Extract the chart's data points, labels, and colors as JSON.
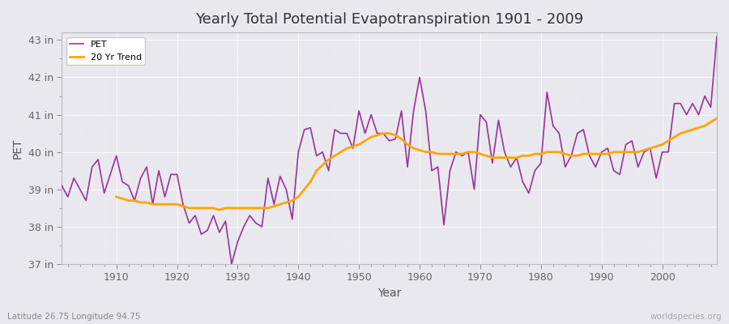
{
  "title": "Yearly Total Potential Evapotranspiration 1901 - 2009",
  "xlabel": "Year",
  "ylabel": "PET",
  "lat_lon_label": "Latitude 26.75 Longitude 94.75",
  "watermark": "worldspecies.org",
  "pet_color": "#993399",
  "trend_color": "#FFA500",
  "background_color": "#e8e8ee",
  "ylim": [
    37,
    43.2
  ],
  "yticks": [
    37,
    38,
    39,
    40,
    41,
    42,
    43
  ],
  "ytick_labels": [
    "37 in",
    "38 in",
    "39 in",
    "40 in",
    "41 in",
    "42 in",
    "43 in"
  ],
  "years": [
    1901,
    1902,
    1903,
    1904,
    1905,
    1906,
    1907,
    1908,
    1909,
    1910,
    1911,
    1912,
    1913,
    1914,
    1915,
    1916,
    1917,
    1918,
    1919,
    1920,
    1921,
    1922,
    1923,
    1924,
    1925,
    1926,
    1927,
    1928,
    1929,
    1930,
    1931,
    1932,
    1933,
    1934,
    1935,
    1936,
    1937,
    1938,
    1939,
    1940,
    1941,
    1942,
    1943,
    1944,
    1945,
    1946,
    1947,
    1948,
    1949,
    1950,
    1951,
    1952,
    1953,
    1954,
    1955,
    1956,
    1957,
    1958,
    1959,
    1960,
    1961,
    1962,
    1963,
    1964,
    1965,
    1966,
    1967,
    1968,
    1969,
    1970,
    1971,
    1972,
    1973,
    1974,
    1975,
    1976,
    1977,
    1978,
    1979,
    1980,
    1981,
    1982,
    1983,
    1984,
    1985,
    1986,
    1987,
    1988,
    1989,
    1990,
    1991,
    1992,
    1993,
    1994,
    1995,
    1996,
    1997,
    1998,
    1999,
    2000,
    2001,
    2002,
    2003,
    2004,
    2005,
    2006,
    2007,
    2008,
    2009
  ],
  "pet_values": [
    39.1,
    38.8,
    39.3,
    39.0,
    38.7,
    39.6,
    39.8,
    38.9,
    39.4,
    39.9,
    39.2,
    39.1,
    38.7,
    39.3,
    39.6,
    38.6,
    39.5,
    38.8,
    39.4,
    39.4,
    38.6,
    38.1,
    38.3,
    37.8,
    37.9,
    38.3,
    37.85,
    38.15,
    37.0,
    37.6,
    38.0,
    38.3,
    38.1,
    38.0,
    39.3,
    38.6,
    39.35,
    39.0,
    38.2,
    40.0,
    40.6,
    40.65,
    39.9,
    40.0,
    39.5,
    40.6,
    40.5,
    40.5,
    40.1,
    41.1,
    40.5,
    41.0,
    40.5,
    40.5,
    40.3,
    40.35,
    41.1,
    39.6,
    41.1,
    42.0,
    41.1,
    39.5,
    39.6,
    38.05,
    39.5,
    40.0,
    39.9,
    40.0,
    39.0,
    41.0,
    40.8,
    39.7,
    40.85,
    40.0,
    39.6,
    39.85,
    39.2,
    38.9,
    39.5,
    39.7,
    41.6,
    40.7,
    40.5,
    39.6,
    39.9,
    40.5,
    40.6,
    39.9,
    39.6,
    40.0,
    40.1,
    39.5,
    39.4,
    40.2,
    40.3,
    39.6,
    40.0,
    40.1,
    39.3,
    40.0,
    40.0,
    41.3,
    41.3,
    41.0,
    41.3,
    41.0,
    41.5,
    41.2,
    43.1
  ],
  "trend_values": [
    null,
    null,
    null,
    null,
    null,
    null,
    null,
    null,
    null,
    38.8,
    38.75,
    38.7,
    38.7,
    38.65,
    38.65,
    38.6,
    38.6,
    38.6,
    38.6,
    38.6,
    38.55,
    38.5,
    38.5,
    38.5,
    38.5,
    38.5,
    38.45,
    38.5,
    38.5,
    38.5,
    38.5,
    38.5,
    38.5,
    38.5,
    38.5,
    38.55,
    38.6,
    38.65,
    38.7,
    38.8,
    39.0,
    39.2,
    39.5,
    39.65,
    39.8,
    39.9,
    40.0,
    40.1,
    40.15,
    40.2,
    40.3,
    40.4,
    40.45,
    40.5,
    40.5,
    40.45,
    40.35,
    40.2,
    40.1,
    40.05,
    40.0,
    40.0,
    39.95,
    39.95,
    39.95,
    39.95,
    39.95,
    40.0,
    40.0,
    39.95,
    39.9,
    39.85,
    39.85,
    39.85,
    39.85,
    39.85,
    39.9,
    39.9,
    39.95,
    39.95,
    40.0,
    40.0,
    40.0,
    39.95,
    39.9,
    39.9,
    39.95,
    39.95,
    39.95,
    39.95,
    39.95,
    40.0,
    40.0,
    40.0,
    40.0,
    40.0,
    40.05,
    40.1,
    40.15,
    40.2,
    40.3,
    40.4,
    40.5,
    40.55,
    40.6,
    40.65,
    40.7,
    40.8,
    40.9
  ]
}
